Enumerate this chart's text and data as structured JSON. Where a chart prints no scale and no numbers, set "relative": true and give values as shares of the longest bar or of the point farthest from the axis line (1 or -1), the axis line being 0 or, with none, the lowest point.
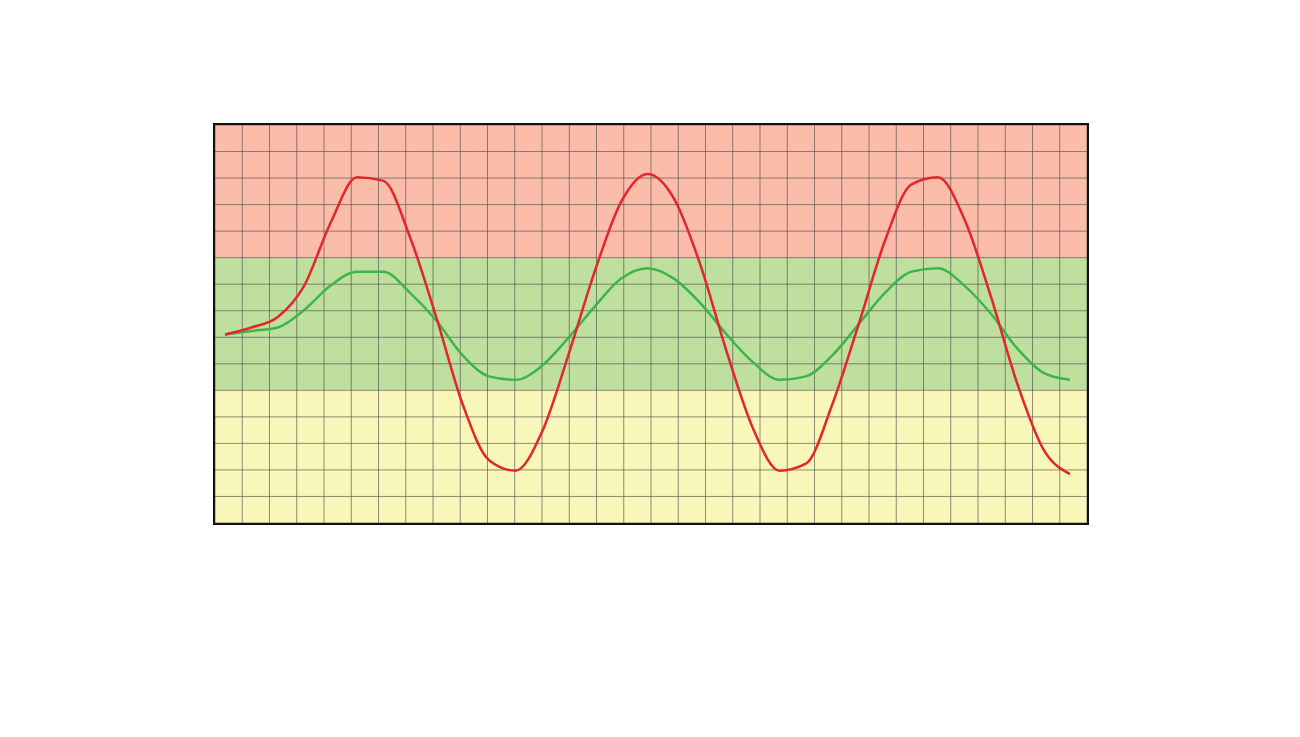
{
  "chart_data": {
    "type": "line",
    "relative": true,
    "grid": true,
    "marker": "none",
    "line_style": "solid",
    "categories": [
      null,
      null,
      null,
      null,
      null,
      null,
      null,
      null,
      null,
      null,
      null,
      null,
      null,
      null,
      null,
      null,
      null,
      null,
      null,
      null,
      null,
      null,
      null,
      null,
      null,
      null,
      null,
      null,
      null,
      null,
      null,
      null,
      null
    ],
    "series": [
      {
        "color": "#e3262b",
        "values": [
          0.54,
          0.56,
          0.59,
          0.68,
          0.86,
          0.99,
          0.98,
          0.82,
          0.59,
          0.34,
          0.18,
          0.15,
          0.26,
          0.48,
          0.72,
          0.92,
          1.0,
          0.93,
          0.74,
          0.49,
          0.27,
          0.15,
          0.17,
          0.34,
          0.57,
          0.81,
          0.97,
          0.99,
          0.87,
          0.65,
          0.4,
          0.21,
          0.14
        ]
      },
      {
        "color": "#3cb54a",
        "values": [
          0.54,
          0.55,
          0.56,
          0.61,
          0.68,
          0.72,
          0.72,
          0.66,
          0.58,
          0.48,
          0.42,
          0.41,
          0.45,
          0.53,
          0.62,
          0.7,
          0.73,
          0.7,
          0.63,
          0.54,
          0.46,
          0.41,
          0.42,
          0.48,
          0.57,
          0.66,
          0.72,
          0.73,
          0.68,
          0.6,
          0.5,
          0.43,
          0.41
        ]
      }
    ],
    "bands": [
      {
        "axis": "y",
        "from": 0,
        "to": 0.38,
        "color": "#f8f6b8"
      },
      {
        "axis": "y",
        "from": 0.38,
        "to": 0.76,
        "color": "#bfdf9f"
      },
      {
        "axis": "y",
        "from": 0.76,
        "to": 1.14,
        "color": "#fbbcaa"
      }
    ]
  }
}
